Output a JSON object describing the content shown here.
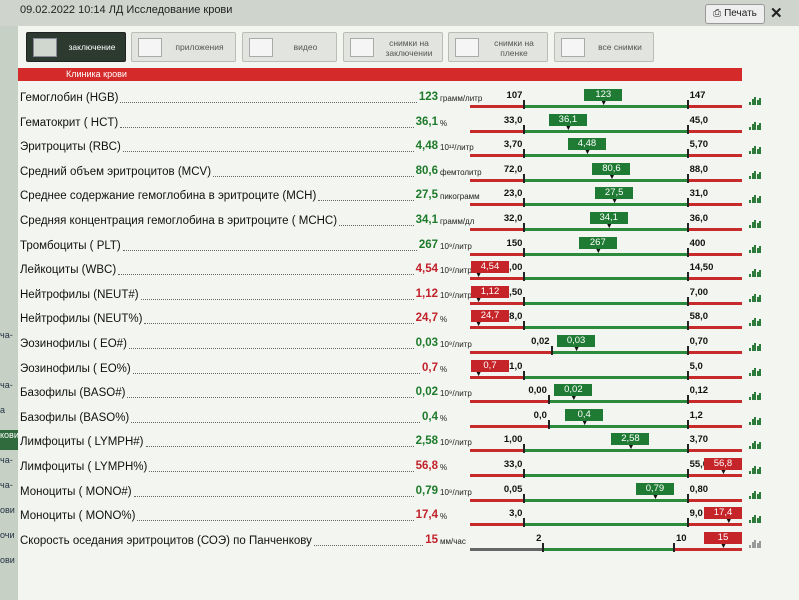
{
  "window": {
    "title": "09.02.2022 10:14 ЛД Исследование крови",
    "print_label": "Печать",
    "close_label": "✕"
  },
  "sidebar": {
    "items": [
      "",
      "",
      "",
      "",
      "",
      "",
      "",
      "",
      "",
      "",
      "",
      "",
      "ча-",
      "",
      "ча-",
      "а",
      "кови",
      "ча-",
      "ча-",
      "ови",
      "очи",
      "ови"
    ]
  },
  "toolbar": [
    {
      "name": "conclusion",
      "label": "заключение",
      "selected": true
    },
    {
      "name": "attachments",
      "label": "приложения",
      "selected": false
    },
    {
      "name": "video",
      "label": "видео",
      "selected": false
    },
    {
      "name": "conclusion-images",
      "label": "снимки на заключении",
      "selected": false
    },
    {
      "name": "film-images",
      "label": "снимки на пленке",
      "selected": false
    },
    {
      "name": "all-images",
      "label": "все снимки",
      "selected": false
    }
  ],
  "section_title": "Клиника крови",
  "rows": [
    {
      "name": "Гемоглобин (HGB)",
      "value": "123",
      "status": "normal",
      "unit": "грамм/литр",
      "low": "107",
      "high": "147",
      "low_pos": 0.2,
      "high_pos": 0.8,
      "value_pos": 0.49,
      "badge": "123",
      "hist": "green"
    },
    {
      "name": "Гематокрит ( HCT)",
      "value": "36,1",
      "status": "normal",
      "unit": "%",
      "low": "33,0",
      "high": "45,0",
      "low_pos": 0.2,
      "high_pos": 0.8,
      "value_pos": 0.36,
      "badge": "36,1",
      "hist": "green"
    },
    {
      "name": "Эритроциты (RBC)",
      "value": "4,48",
      "status": "normal",
      "unit": "10¹²/литр",
      "low": "3,70",
      "high": "5,70",
      "low_pos": 0.2,
      "high_pos": 0.8,
      "value_pos": 0.43,
      "badge": "4,48",
      "hist": "green"
    },
    {
      "name": "Средний объем эритроцитов (MCV)",
      "value": "80,6",
      "status": "normal",
      "unit": "фемтолитр",
      "low": "72,0",
      "high": "88,0",
      "low_pos": 0.2,
      "high_pos": 0.8,
      "value_pos": 0.52,
      "badge": "80,6",
      "hist": "green"
    },
    {
      "name": "Среднее содержание гемоглобина в эритроците (MCH)",
      "value": "27,5",
      "status": "normal",
      "unit": "пикограмм",
      "low": "23,0",
      "high": "31,0",
      "low_pos": 0.2,
      "high_pos": 0.8,
      "value_pos": 0.53,
      "badge": "27,5",
      "hist": "green"
    },
    {
      "name": "Средняя концентрация гемоглобина в эритроците ( MCHC)",
      "value": "34,1",
      "status": "normal",
      "unit": "грамм/дл",
      "low": "32,0",
      "high": "36,0",
      "low_pos": 0.2,
      "high_pos": 0.8,
      "value_pos": 0.51,
      "badge": "34,1",
      "hist": "green"
    },
    {
      "name": "Тромбоциты ( PLT)",
      "value": "267",
      "status": "normal",
      "unit": "10⁹/литр",
      "low": "150",
      "high": "400",
      "low_pos": 0.2,
      "high_pos": 0.8,
      "value_pos": 0.47,
      "badge": "267",
      "hist": "green"
    },
    {
      "name": "Лейкоциты (WBC)",
      "value": "4,54",
      "status": "high",
      "unit": "10⁹/литр",
      "low": "5,00",
      "high": "14,50",
      "low_pos": 0.2,
      "high_pos": 0.8,
      "value_pos": 0.03,
      "badge": "4,54",
      "hist": "green"
    },
    {
      "name": "Нейтрофилы (NEUT#)",
      "value": "1,12",
      "status": "high",
      "unit": "10⁹/литр",
      "low": "1,50",
      "high": "7,00",
      "low_pos": 0.2,
      "high_pos": 0.8,
      "value_pos": 0.03,
      "badge": "1,12",
      "hist": "green"
    },
    {
      "name": "Нейтрофилы (NEUT%)",
      "value": "24,7",
      "status": "high",
      "unit": "%",
      "low": "38,0",
      "high": "58,0",
      "low_pos": 0.2,
      "high_pos": 0.8,
      "value_pos": 0.03,
      "badge": "24,7",
      "hist": "green"
    },
    {
      "name": "Эозинофилы ( EO#)",
      "value": "0,03",
      "status": "normal",
      "unit": "10⁹/литр",
      "low": "0,02",
      "high": "0,70",
      "low_pos": 0.3,
      "high_pos": 0.8,
      "value_pos": 0.39,
      "badge": "0,03",
      "hist": "green"
    },
    {
      "name": "Эозинофилы ( EO%)",
      "value": "0,7",
      "status": "high",
      "unit": "%",
      "low": "1,0",
      "high": "5,0",
      "low_pos": 0.2,
      "high_pos": 0.8,
      "value_pos": 0.03,
      "badge": "0,7",
      "hist": "green"
    },
    {
      "name": "Базофилы (BASO#)",
      "value": "0,02",
      "status": "normal",
      "unit": "10⁹/литр",
      "low": "0,00",
      "high": "0,12",
      "low_pos": 0.29,
      "high_pos": 0.8,
      "value_pos": 0.38,
      "badge": "0,02",
      "hist": "green"
    },
    {
      "name": "Базофилы (BASO%)",
      "value": "0,4",
      "status": "normal",
      "unit": "%",
      "low": "0,0",
      "high": "1,2",
      "low_pos": 0.29,
      "high_pos": 0.8,
      "value_pos": 0.42,
      "badge": "0,4",
      "hist": "green"
    },
    {
      "name": "Лимфоциты ( LYMPH#)",
      "value": "2,58",
      "status": "normal",
      "unit": "10⁹/литр",
      "low": "1,00",
      "high": "3,70",
      "low_pos": 0.2,
      "high_pos": 0.8,
      "value_pos": 0.59,
      "badge": "2,58",
      "hist": "green"
    },
    {
      "name": "Лимфоциты ( LYMPH%)",
      "value": "56,8",
      "status": "high",
      "unit": "%",
      "low": "33,0",
      "high": "55,0",
      "low_pos": 0.2,
      "high_pos": 0.8,
      "value_pos": 0.93,
      "badge": "56,8",
      "hist": "green"
    },
    {
      "name": "Моноциты ( MONO#)",
      "value": "0,79",
      "status": "normal",
      "unit": "10⁹/литр",
      "low": "0,05",
      "high": "0,80",
      "low_pos": 0.2,
      "high_pos": 0.8,
      "value_pos": 0.68,
      "badge": "0,79",
      "hist": "green"
    },
    {
      "name": "Моноциты ( MONO%)",
      "value": "17,4",
      "status": "high",
      "unit": "%",
      "low": "3,0",
      "high": "9,0",
      "low_pos": 0.2,
      "high_pos": 0.8,
      "value_pos": 0.95,
      "badge": "17,4",
      "hist": "green"
    },
    {
      "name": "Скорость оседания эритроцитов (СОЭ) по Панченкову",
      "value": "15",
      "status": "high",
      "unit": "мм/час",
      "low": "2",
      "high": "10",
      "low_pos": 0.27,
      "high_pos": 0.75,
      "value_pos": 0.93,
      "badge": "15",
      "hist": "gray"
    }
  ],
  "colors": {
    "normal": "#1d7a2a",
    "high": "#c2212a",
    "section": "#d42a2a"
  }
}
